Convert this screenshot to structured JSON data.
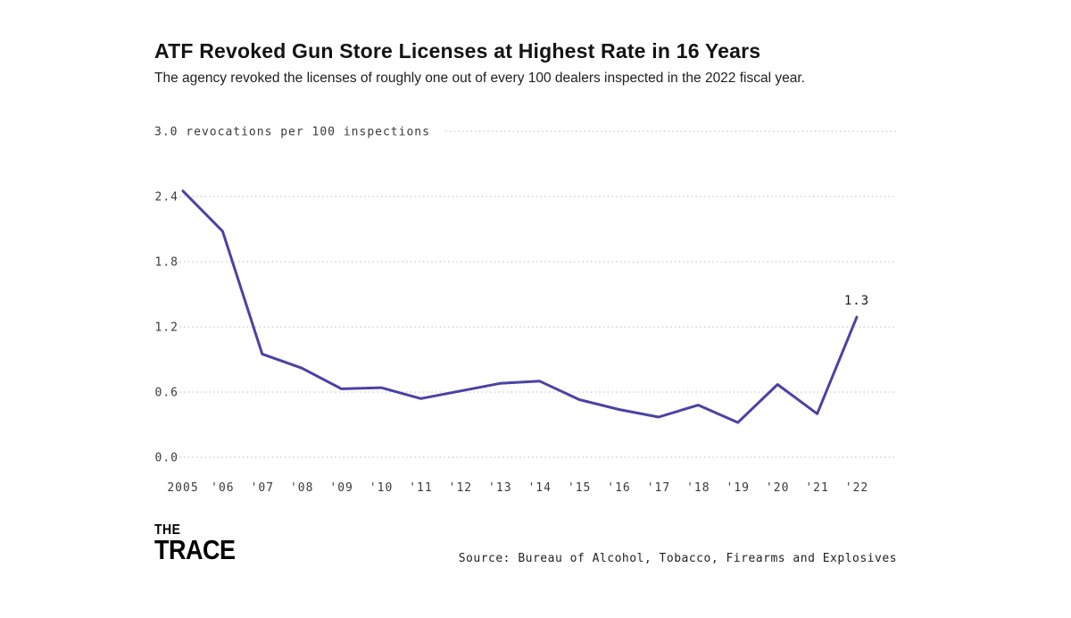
{
  "header": {
    "title": "ATF Revoked Gun Store Licenses at Highest Rate in 16 Years",
    "subtitle": "The agency revoked the licenses of roughly one out of every 100 dealers inspected in the 2022 fiscal year."
  },
  "chart_data": {
    "type": "line",
    "title": "ATF Revoked Gun Store Licenses at Highest Rate in 16 Years",
    "y_axis_title": "3.0 revocations per 100 inspections",
    "x": [
      "2005",
      "'06",
      "'07",
      "'08",
      "'09",
      "'10",
      "'11",
      "'12",
      "'13",
      "'14",
      "'15",
      "'16",
      "'17",
      "'18",
      "'19",
      "'20",
      "'21",
      "'22"
    ],
    "values": [
      2.45,
      2.08,
      0.95,
      0.82,
      0.63,
      0.64,
      0.54,
      0.61,
      0.68,
      0.7,
      0.53,
      0.44,
      0.37,
      0.48,
      0.32,
      0.67,
      0.4,
      1.29
    ],
    "ylim": [
      0,
      3.0
    ],
    "y_ticks": [
      0,
      0.6,
      1.2,
      1.8,
      2.4,
      3.0
    ],
    "end_label": "1.3",
    "line_color": "#4c42a3",
    "grid_color": "#c9c9c9",
    "grid_style": "dotted horizontal",
    "legend": "none"
  },
  "footer": {
    "logo_line1": "THE",
    "logo_line2": "TRACE",
    "source": "Source: Bureau of Alcohol, Tobacco, Firearms and Explosives"
  }
}
